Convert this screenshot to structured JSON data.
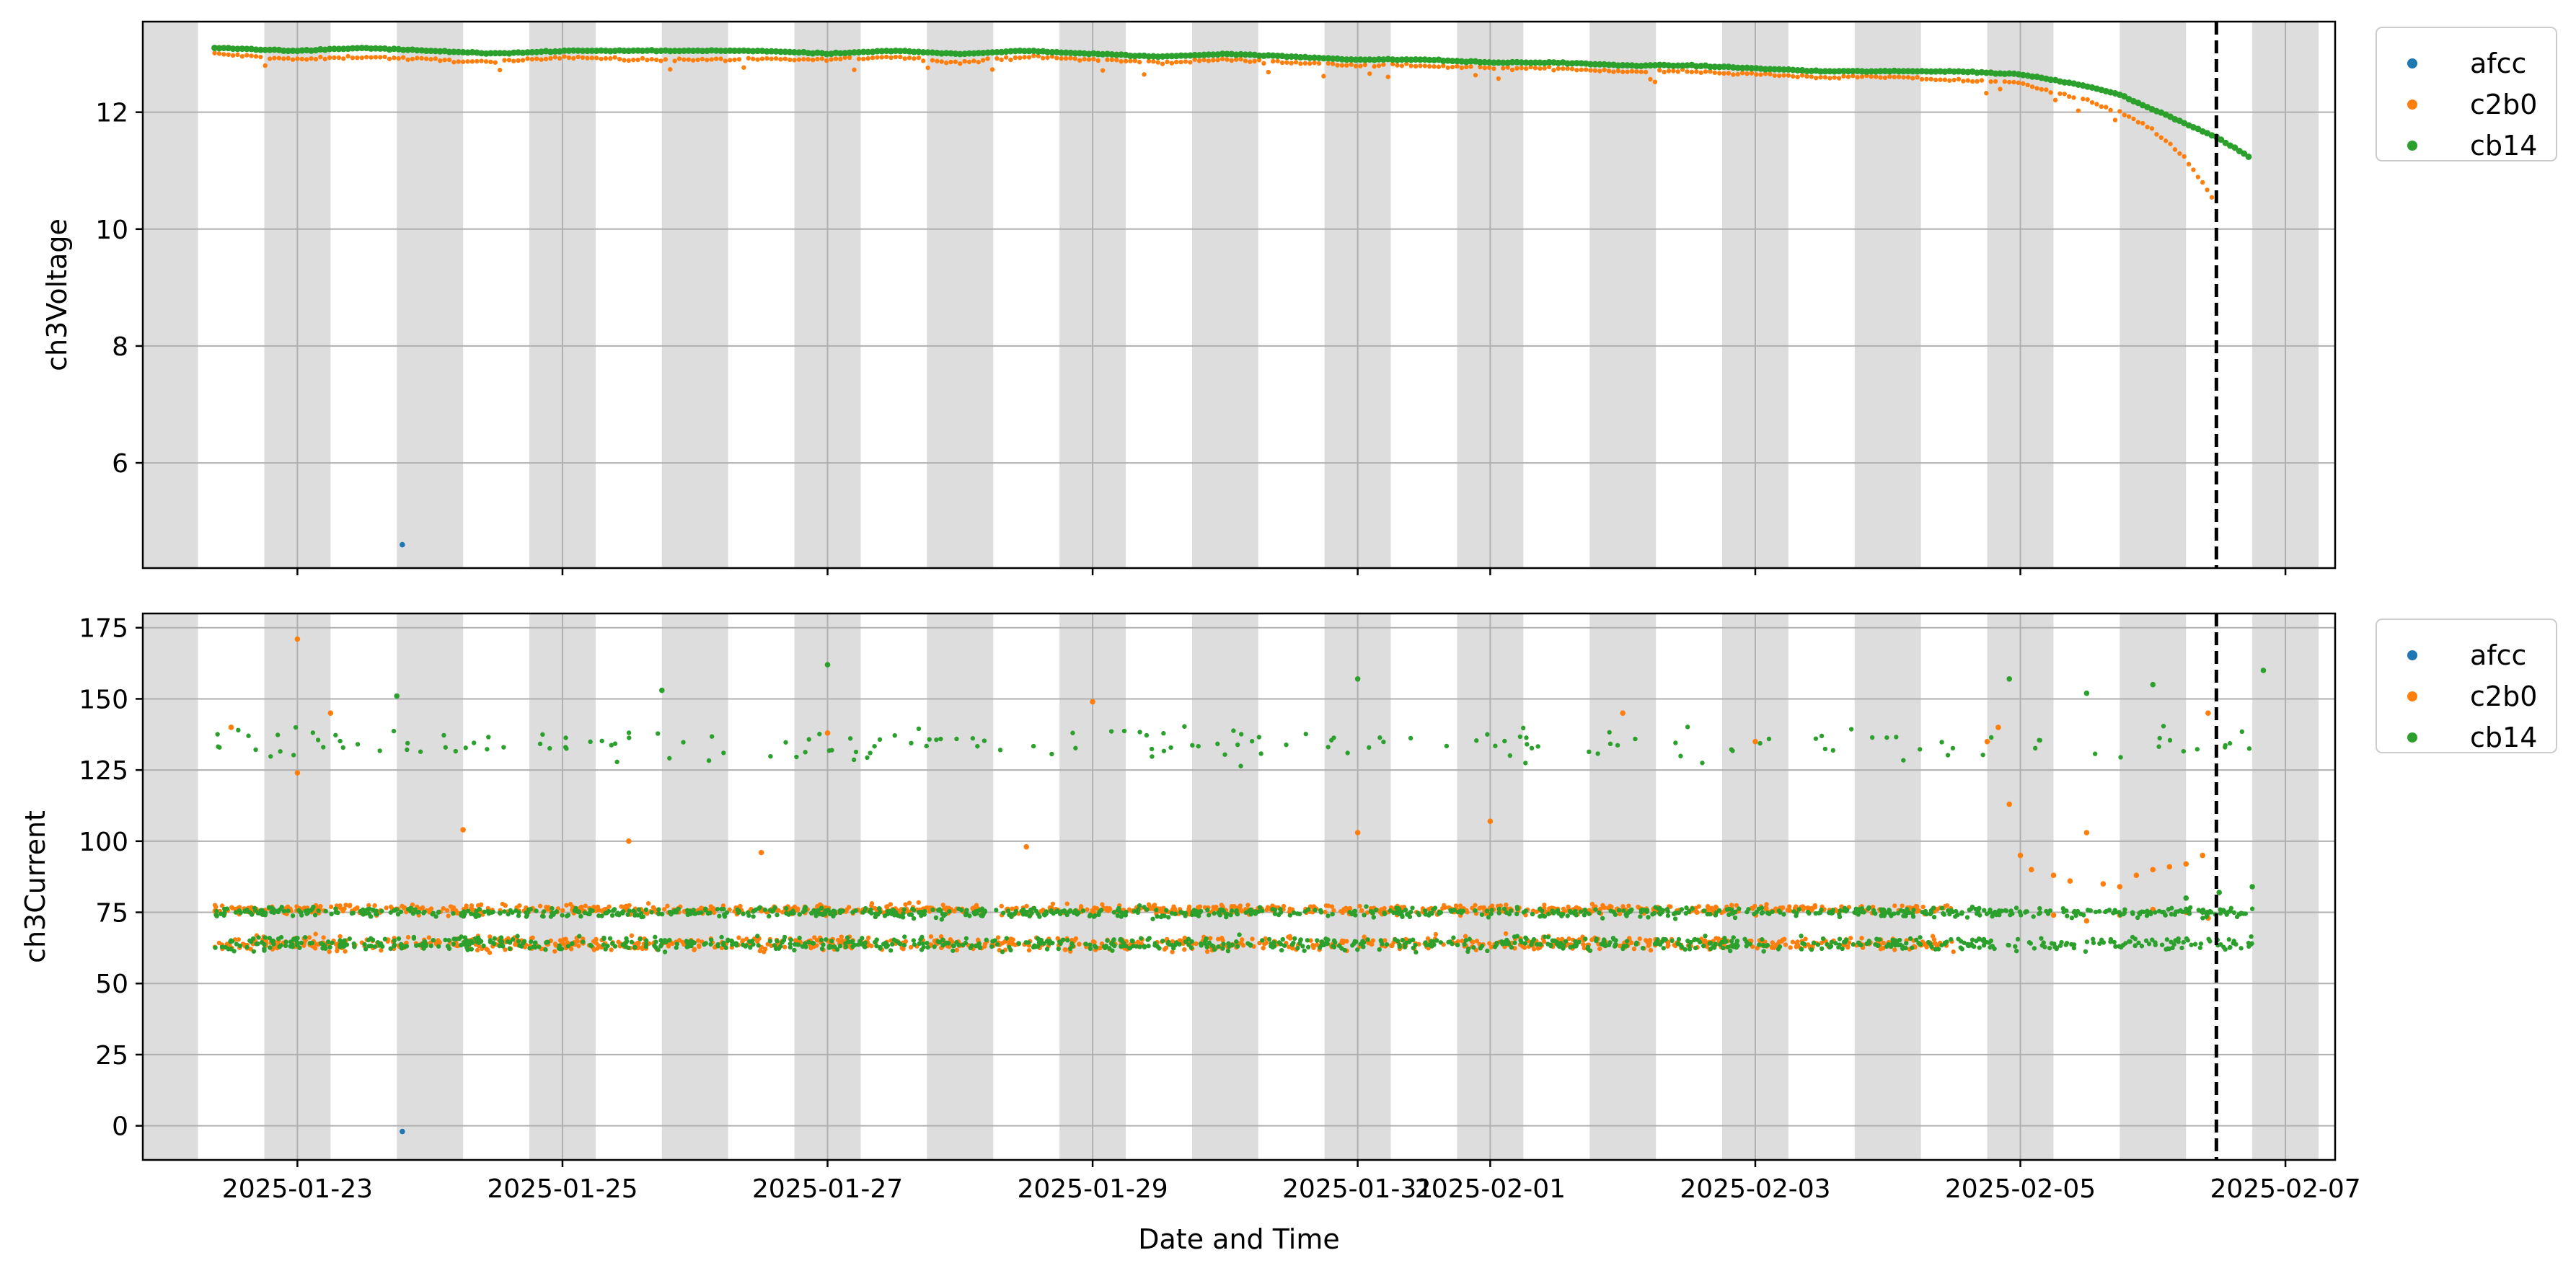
{
  "figure": {
    "xlabel": "Date and Time"
  },
  "chart_data": [
    {
      "type": "scatter",
      "title": "",
      "xlabel": "",
      "ylabel": "ch3Voltage",
      "x_type": "date",
      "xlim": [
        "2025-01-21T20:00",
        "2025-02-07T09:00"
      ],
      "ylim": [
        4.2,
        13.55
      ],
      "y_ticks": [
        6,
        8,
        10,
        12
      ],
      "x_ticks": [
        "2025-01-23",
        "2025-01-25",
        "2025-01-27",
        "2025-01-29",
        "2025-01-31",
        "2025-02-01",
        "2025-02-03",
        "2025-02-05",
        "2025-02-07"
      ],
      "x_tick_labels": [
        "2025-01-23",
        "2025-01-25",
        "2025-01-27",
        "2025-01-29",
        "2025-01-31",
        "2025-02-01",
        "2025-02-03",
        "2025-02-05",
        "2025-02-07"
      ],
      "grid": true,
      "legend": "outside upper right",
      "vline": "2025-02-06T11:30",
      "shaded_bands": [
        [
          "2025-01-21T20:00",
          "2025-01-22T06:00"
        ],
        [
          "2025-01-22T18:00",
          "2025-01-23T06:00"
        ],
        [
          "2025-01-23T18:00",
          "2025-01-24T06:00"
        ],
        [
          "2025-01-24T18:00",
          "2025-01-25T06:00"
        ],
        [
          "2025-01-25T18:00",
          "2025-01-26T06:00"
        ],
        [
          "2025-01-26T18:00",
          "2025-01-27T06:00"
        ],
        [
          "2025-01-27T18:00",
          "2025-01-28T06:00"
        ],
        [
          "2025-01-28T18:00",
          "2025-01-29T06:00"
        ],
        [
          "2025-01-29T18:00",
          "2025-01-30T06:00"
        ],
        [
          "2025-01-30T18:00",
          "2025-01-31T06:00"
        ],
        [
          "2025-01-31T18:00",
          "2025-02-01T06:00"
        ],
        [
          "2025-02-01T18:00",
          "2025-02-02T06:00"
        ],
        [
          "2025-02-02T18:00",
          "2025-02-03T06:00"
        ],
        [
          "2025-02-03T18:00",
          "2025-02-04T06:00"
        ],
        [
          "2025-02-04T18:00",
          "2025-02-05T06:00"
        ],
        [
          "2025-02-05T18:00",
          "2025-02-06T06:00"
        ],
        [
          "2025-02-06T18:00",
          "2025-02-07T06:00"
        ]
      ],
      "series": [
        {
          "name": "afcc",
          "color": "#1f77b4",
          "points": [
            [
              "2025-01-23T19:00",
              4.6
            ]
          ]
        },
        {
          "name": "c2b0",
          "color": "#ff7f0e",
          "points": [
            [
              "2025-01-22T09:00",
              13.0
            ],
            [
              "2025-01-23T00:00",
              12.9
            ],
            [
              "2025-01-23T12:00",
              12.95
            ],
            [
              "2025-01-24T00:00",
              12.9
            ],
            [
              "2025-01-24T12:00",
              12.85
            ],
            [
              "2025-01-25T00:00",
              12.95
            ],
            [
              "2025-01-25T12:00",
              12.9
            ],
            [
              "2025-01-26T00:00",
              12.9
            ],
            [
              "2025-01-26T12:00",
              12.9
            ],
            [
              "2025-01-27T00:00",
              12.9
            ],
            [
              "2025-01-27T12:00",
              12.95
            ],
            [
              "2025-01-28T00:00",
              12.85
            ],
            [
              "2025-01-28T12:00",
              12.95
            ],
            [
              "2025-01-29T00:00",
              12.9
            ],
            [
              "2025-01-29T12:00",
              12.85
            ],
            [
              "2025-01-30T00:00",
              12.9
            ],
            [
              "2025-01-30T12:00",
              12.85
            ],
            [
              "2025-01-31T00:00",
              12.8
            ],
            [
              "2025-01-31T12:00",
              12.8
            ],
            [
              "2025-02-01T00:00",
              12.75
            ],
            [
              "2025-02-01T12:00",
              12.75
            ],
            [
              "2025-02-02T00:00",
              12.7
            ],
            [
              "2025-02-02T12:00",
              12.7
            ],
            [
              "2025-02-03T00:00",
              12.65
            ],
            [
              "2025-02-03T12:00",
              12.6
            ],
            [
              "2025-02-04T00:00",
              12.6
            ],
            [
              "2025-02-04T12:00",
              12.55
            ],
            [
              "2025-02-05T00:00",
              12.5
            ],
            [
              "2025-02-05T06:00",
              12.35
            ],
            [
              "2025-02-05T12:00",
              12.2
            ],
            [
              "2025-02-05T18:00",
              12.0
            ],
            [
              "2025-02-06T00:00",
              11.7
            ],
            [
              "2025-02-06T06:00",
              11.2
            ],
            [
              "2025-02-06T11:00",
              10.5
            ]
          ]
        },
        {
          "name": "cb14",
          "color": "#2ca02c",
          "points": [
            [
              "2025-01-22T09:00",
              13.1
            ],
            [
              "2025-01-23T00:00",
              13.05
            ],
            [
              "2025-01-23T12:00",
              13.1
            ],
            [
              "2025-01-24T00:00",
              13.05
            ],
            [
              "2025-01-24T12:00",
              13.0
            ],
            [
              "2025-01-25T00:00",
              13.05
            ],
            [
              "2025-01-25T12:00",
              13.05
            ],
            [
              "2025-01-26T00:00",
              13.05
            ],
            [
              "2025-01-26T12:00",
              13.05
            ],
            [
              "2025-01-27T00:00",
              13.0
            ],
            [
              "2025-01-27T12:00",
              13.05
            ],
            [
              "2025-01-28T00:00",
              13.0
            ],
            [
              "2025-01-28T12:00",
              13.05
            ],
            [
              "2025-01-29T00:00",
              13.0
            ],
            [
              "2025-01-29T12:00",
              12.95
            ],
            [
              "2025-01-30T00:00",
              13.0
            ],
            [
              "2025-01-30T12:00",
              12.95
            ],
            [
              "2025-01-31T00:00",
              12.9
            ],
            [
              "2025-01-31T12:00",
              12.9
            ],
            [
              "2025-02-01T00:00",
              12.85
            ],
            [
              "2025-02-01T12:00",
              12.85
            ],
            [
              "2025-02-02T00:00",
              12.8
            ],
            [
              "2025-02-02T12:00",
              12.8
            ],
            [
              "2025-02-03T00:00",
              12.75
            ],
            [
              "2025-02-03T12:00",
              12.7
            ],
            [
              "2025-02-04T00:00",
              12.7
            ],
            [
              "2025-02-04T12:00",
              12.7
            ],
            [
              "2025-02-05T00:00",
              12.65
            ],
            [
              "2025-02-05T06:00",
              12.55
            ],
            [
              "2025-02-05T12:00",
              12.45
            ],
            [
              "2025-02-05T18:00",
              12.3
            ],
            [
              "2025-02-06T00:00",
              12.05
            ],
            [
              "2025-02-06T06:00",
              11.8
            ],
            [
              "2025-02-06T12:00",
              11.55
            ],
            [
              "2025-02-06T18:00",
              11.2
            ]
          ]
        }
      ]
    },
    {
      "type": "scatter",
      "title": "",
      "xlabel": "Date and Time",
      "ylabel": "ch3Current",
      "x_type": "date",
      "xlim": [
        "2025-01-21T20:00",
        "2025-02-07T09:00"
      ],
      "ylim": [
        -12,
        180
      ],
      "y_ticks": [
        0,
        25,
        50,
        75,
        100,
        125,
        150,
        175
      ],
      "x_ticks": [
        "2025-01-23",
        "2025-01-25",
        "2025-01-27",
        "2025-01-29",
        "2025-01-31",
        "2025-02-01",
        "2025-02-03",
        "2025-02-05",
        "2025-02-07"
      ],
      "x_tick_labels": [
        "2025-01-23",
        "2025-01-25",
        "2025-01-27",
        "2025-01-29",
        "2025-01-31",
        "2025-02-01",
        "2025-02-03",
        "2025-02-05",
        "2025-02-07"
      ],
      "grid": true,
      "legend": "outside upper right",
      "vline": "2025-02-06T11:30",
      "series": [
        {
          "name": "afcc",
          "color": "#1f77b4",
          "points": [
            [
              "2025-01-23T19:00",
              -2
            ]
          ]
        },
        {
          "name": "c2b0",
          "color": "#ff7f0e",
          "bands": [
            {
              "from": "2025-01-22T09:00",
              "to": "2025-02-04T12:00",
              "center": 64,
              "spread": 4
            },
            {
              "from": "2025-01-22T09:00",
              "to": "2025-02-04T12:00",
              "center": 76,
              "spread": 3
            }
          ],
          "points": [
            [
              "2025-01-23T00:00",
              171
            ],
            [
              "2025-01-23T00:00",
              124
            ],
            [
              "2025-01-22T12:00",
              140
            ],
            [
              "2025-01-23T06:00",
              145
            ],
            [
              "2025-01-24T06:00",
              104
            ],
            [
              "2025-01-25T12:00",
              100
            ],
            [
              "2025-01-26T12:00",
              96
            ],
            [
              "2025-01-27T00:00",
              138
            ],
            [
              "2025-01-28T12:00",
              98
            ],
            [
              "2025-01-29T00:00",
              149
            ],
            [
              "2025-01-31T00:00",
              103
            ],
            [
              "2025-02-01T00:00",
              107
            ],
            [
              "2025-02-02T00:00",
              145
            ],
            [
              "2025-02-03T00:00",
              135
            ],
            [
              "2025-02-04T18:00",
              135
            ],
            [
              "2025-02-04T20:00",
              140
            ],
            [
              "2025-02-04T22:00",
              113
            ],
            [
              "2025-02-05T00:00",
              95
            ],
            [
              "2025-02-05T02:00",
              90
            ],
            [
              "2025-02-05T06:00",
              88
            ],
            [
              "2025-02-05T09:00",
              86
            ],
            [
              "2025-02-05T12:00",
              103
            ],
            [
              "2025-02-05T15:00",
              85
            ],
            [
              "2025-02-05T18:00",
              84
            ],
            [
              "2025-02-05T21:00",
              88
            ],
            [
              "2025-02-06T00:00",
              90
            ],
            [
              "2025-02-06T03:00",
              91
            ],
            [
              "2025-02-06T06:00",
              92
            ],
            [
              "2025-02-06T09:00",
              95
            ],
            [
              "2025-02-06T10:00",
              145
            ],
            [
              "2025-02-05T06:00",
              74
            ],
            [
              "2025-02-05T12:00",
              72
            ],
            [
              "2025-02-05T18:00",
              74
            ],
            [
              "2025-02-06T00:00",
              76
            ],
            [
              "2025-02-06T06:00",
              75
            ],
            [
              "2025-02-06T10:00",
              73
            ]
          ]
        },
        {
          "name": "cb14",
          "color": "#2ca02c",
          "bands": [
            {
              "from": "2025-01-22T09:00",
              "to": "2025-02-06T18:00",
              "center": 64,
              "spread": 4
            },
            {
              "from": "2025-01-22T09:00",
              "to": "2025-02-06T18:00",
              "center": 75,
              "spread": 3
            },
            {
              "from": "2025-01-22T09:00",
              "to": "2025-02-06T18:00",
              "center": 134,
              "spread": 10
            }
          ],
          "points": [
            [
              "2025-01-23T18:00",
              151
            ],
            [
              "2025-01-25T18:00",
              153
            ],
            [
              "2025-01-27T00:00",
              162
            ],
            [
              "2025-01-31T00:00",
              157
            ],
            [
              "2025-02-04T22:00",
              157
            ],
            [
              "2025-02-05T12:00",
              152
            ],
            [
              "2025-02-06T00:00",
              155
            ],
            [
              "2025-02-06T20:00",
              160
            ],
            [
              "2025-02-06T06:00",
              80
            ],
            [
              "2025-02-06T12:00",
              82
            ],
            [
              "2025-02-06T18:00",
              84
            ]
          ]
        }
      ]
    }
  ]
}
